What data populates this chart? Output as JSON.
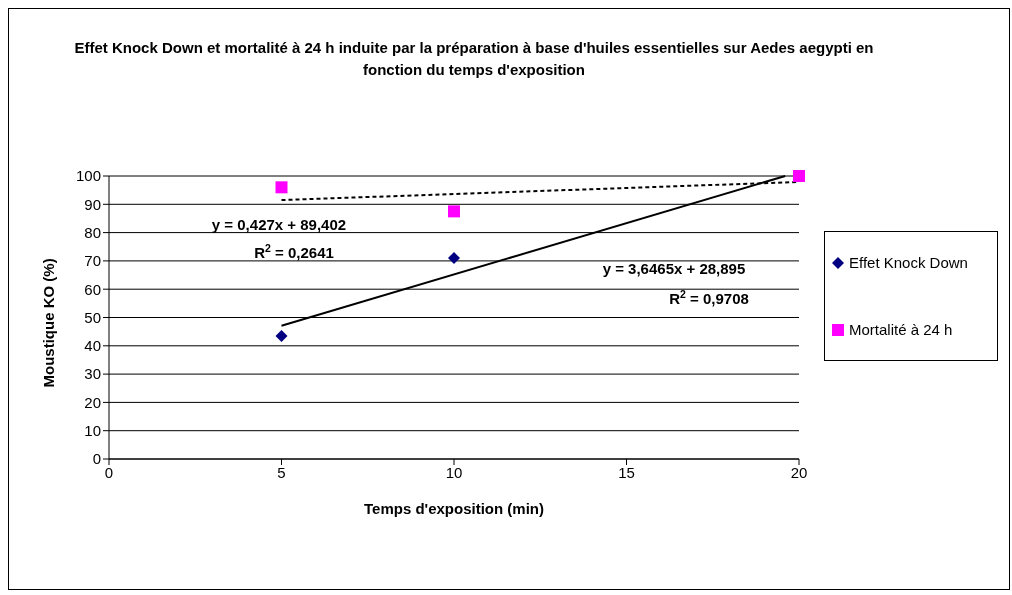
{
  "chart_data": {
    "type": "scatter",
    "title": "Effet Knock Down et mortalité à 24 h induite par la préparation à base d'huiles essentielles sur Aedes aegypti en fonction du temps d'exposition",
    "xlabel": "Temps d'exposition (min)",
    "ylabel": "Moustique KO (%)",
    "series": [
      {
        "name": "Effet Knock Down",
        "color": "#000080",
        "marker": "diamond",
        "x": [
          5,
          10
        ],
        "values": [
          43.5,
          71
        ]
      },
      {
        "name": "Mortalité à 24 h",
        "color": "#ff00ff",
        "marker": "square",
        "x": [
          5,
          10,
          20
        ],
        "values": [
          96,
          87.5,
          100
        ]
      },
      {
        "type": "line",
        "color": "#000000",
        "line_style": "solid",
        "marker": "none",
        "x": [
          5,
          19.6
        ],
        "values": [
          47.1,
          100
        ]
      },
      {
        "type": "line",
        "color": "#000000",
        "line_style": "dashed",
        "marker": "none",
        "x": [
          5,
          20
        ],
        "values": [
          91.5,
          97.9
        ]
      }
    ],
    "annotations": [
      "y = 0,427x + 89,402",
      "R$^{2}$ = 0,2641",
      "y = 3,6465x + 28,895",
      "R$^{2}$ = 0,9708"
    ],
    "xlim": [
      0,
      20
    ],
    "xticks": [
      0,
      5,
      10,
      15,
      20
    ],
    "ylim": [
      0,
      100
    ],
    "yticks": [
      0,
      10,
      20,
      30,
      40,
      50,
      60,
      70,
      80,
      90,
      100
    ],
    "grid": "y",
    "legend": "right"
  }
}
